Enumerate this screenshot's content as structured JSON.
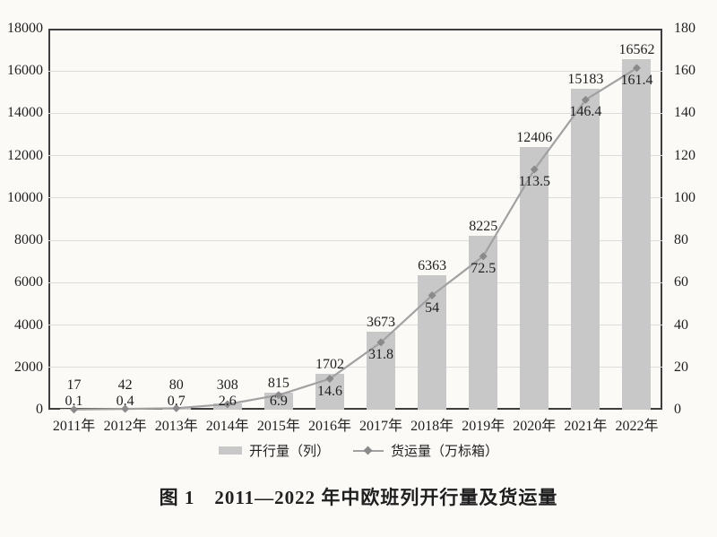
{
  "figure": {
    "caption": "图 1　2011—2022 年中欧班列开行量及货运量"
  },
  "chart_data": {
    "type": "combo",
    "title": "图 1　2011—2022 年中欧班列开行量及货运量",
    "categories": [
      "2011年",
      "2012年",
      "2013年",
      "2014年",
      "2015年",
      "2016年",
      "2017年",
      "2018年",
      "2019年",
      "2020年",
      "2021年",
      "2022年"
    ],
    "series": [
      {
        "name": "开行量（列）",
        "type": "bar",
        "axis": "left",
        "color": "#c8c8c8",
        "values": [
          17,
          42,
          80,
          308,
          815,
          1702,
          3673,
          6363,
          8225,
          12406,
          15183,
          16562
        ]
      },
      {
        "name": "货运量（万标箱）",
        "type": "line",
        "axis": "right",
        "color": "#a1a1a1",
        "marker": "diamond",
        "marker_color": "#8a8a8a",
        "values": [
          0.1,
          0.4,
          0.7,
          2.6,
          6.9,
          14.6,
          31.8,
          54,
          72.5,
          113.5,
          146.4,
          161.4
        ]
      }
    ],
    "axes": {
      "left": {
        "min": 0,
        "max": 18000,
        "step": 2000
      },
      "right": {
        "min": 0,
        "max": 180,
        "step": 20
      }
    },
    "grid": true,
    "legend_position": "bottom"
  },
  "colors": {
    "bar": "#c8c8c8",
    "line": "#a1a1a1",
    "marker": "#8a8a8a",
    "grid": "#dcdcdc",
    "axis_border": "#3e3e3e",
    "text": "#1f1f1f",
    "background": "#fbfaf7"
  }
}
